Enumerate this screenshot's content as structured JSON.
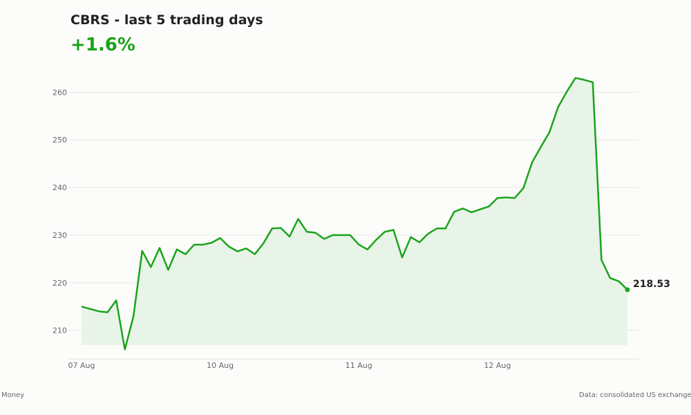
{
  "header": {
    "title": "CBRS - last 5 trading days",
    "change": "+1.6%"
  },
  "footer": {
    "left": "Money",
    "right": "Data: consolidated US exchange d"
  },
  "colors": {
    "line": "#1aa31a",
    "fill": "#e8f4e8",
    "change": "#1aa31a",
    "grid": "#e6e6e6"
  },
  "chart_data": {
    "type": "line",
    "title": "CBRS - last 5 trading days",
    "xlabel": "",
    "ylabel": "",
    "ylim": [
      204,
      266
    ],
    "y_ticks": [
      210,
      220,
      230,
      240,
      250,
      260
    ],
    "x_tick_labels": [
      {
        "label": "07 Aug",
        "index": 0
      },
      {
        "label": "10 Aug",
        "index": 16
      },
      {
        "label": "11 Aug",
        "index": 32
      },
      {
        "label": "12 Aug",
        "index": 48
      }
    ],
    "grid": true,
    "last_value_label": "218.53",
    "values": [
      215.0,
      214.5,
      214.0,
      213.8,
      216.3,
      206.0,
      213.0,
      226.7,
      223.3,
      227.3,
      222.7,
      227.0,
      226.0,
      228.0,
      228.0,
      228.4,
      229.4,
      227.6,
      226.6,
      227.2,
      226.0,
      228.3,
      231.4,
      231.5,
      229.7,
      233.4,
      230.7,
      230.5,
      229.2,
      230.0,
      230.0,
      230.0,
      228.0,
      227.0,
      229.0,
      230.7,
      231.1,
      225.3,
      229.6,
      228.5,
      230.3,
      231.4,
      231.4,
      234.9,
      235.6,
      234.8,
      235.4,
      236.0,
      237.8,
      237.9,
      237.8,
      239.9,
      245.3,
      248.5,
      251.6,
      256.9,
      260.1,
      263.0,
      262.6,
      262.1,
      224.8,
      221.0,
      220.3,
      218.53
    ]
  }
}
